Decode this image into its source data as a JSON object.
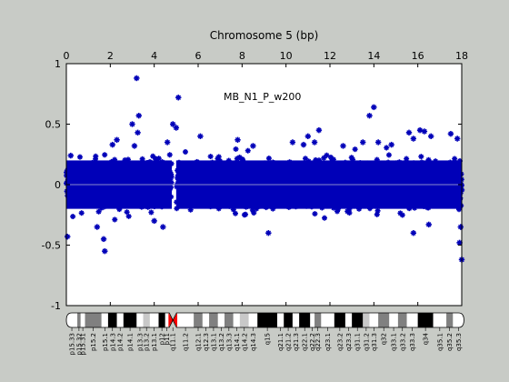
{
  "chart_data": {
    "type": "scatter",
    "title": "Chromosome 5 (bp)",
    "annotation": "MB_N1_P_w200",
    "xlabel": "",
    "ylabel": "",
    "xlim": [
      0,
      18
    ],
    "ylim": [
      -1,
      1
    ],
    "x_ticks": [
      0,
      2,
      4,
      6,
      8,
      10,
      12,
      14,
      16,
      18
    ],
    "x_tick_labels": [
      "0",
      "2",
      "4",
      "6",
      "8",
      "10",
      "12",
      "14",
      "16",
      "18"
    ],
    "y_ticks": [
      -1,
      -0.5,
      0,
      0.5,
      1
    ],
    "y_tick_labels": [
      "-1",
      "-0.5",
      "0",
      "0.5",
      "1"
    ],
    "x_axis_position": "top",
    "reference_line_y": 0,
    "grid": false,
    "colors": {
      "points": "#0000b8",
      "background": "#c8cbc6",
      "plot_area": "#ffffff",
      "centromere": "#ff0000"
    },
    "series": [
      {
        "dense_band": [
          -0.3,
          0.3
        ],
        "gap_x": [
          4.8,
          5.0
        ],
        "outliers": [
          [
            0.05,
            -0.43
          ],
          [
            0.2,
            0.24
          ],
          [
            1.4,
            -0.35
          ],
          [
            1.7,
            -0.45
          ],
          [
            1.75,
            -0.55
          ],
          [
            2.1,
            0.33
          ],
          [
            2.3,
            0.37
          ],
          [
            3.0,
            0.5
          ],
          [
            3.2,
            0.88
          ],
          [
            3.3,
            0.57
          ],
          [
            3.25,
            0.43
          ],
          [
            3.1,
            0.32
          ],
          [
            4.0,
            -0.3
          ],
          [
            4.4,
            -0.35
          ],
          [
            4.6,
            0.35
          ],
          [
            4.85,
            0.5
          ],
          [
            5.0,
            0.47
          ],
          [
            5.1,
            0.72
          ],
          [
            6.1,
            0.4
          ],
          [
            7.8,
            0.37
          ],
          [
            8.5,
            0.32
          ],
          [
            9.2,
            -0.4
          ],
          [
            10.3,
            0.35
          ],
          [
            10.8,
            0.33
          ],
          [
            11.0,
            0.4
          ],
          [
            11.3,
            0.35
          ],
          [
            11.5,
            0.45
          ],
          [
            12.6,
            0.32
          ],
          [
            13.5,
            0.35
          ],
          [
            13.8,
            0.57
          ],
          [
            14.0,
            0.64
          ],
          [
            14.2,
            0.35
          ],
          [
            14.8,
            0.33
          ],
          [
            15.6,
            0.43
          ],
          [
            15.8,
            0.38
          ],
          [
            16.1,
            0.45
          ],
          [
            16.3,
            0.44
          ],
          [
            16.6,
            0.4
          ],
          [
            17.5,
            0.42
          ],
          [
            17.8,
            0.38
          ],
          [
            15.8,
            -0.4
          ],
          [
            16.5,
            -0.33
          ],
          [
            17.9,
            -0.48
          ],
          [
            18.0,
            -0.62
          ],
          [
            17.95,
            -0.35
          ]
        ]
      }
    ],
    "ideogram": {
      "bands": [
        {
          "start": 0.0,
          "end": 0.5,
          "stain": "gneg",
          "label": "p15.33"
        },
        {
          "start": 0.5,
          "end": 0.65,
          "stain": "gpos50",
          "label": "p15.32"
        },
        {
          "start": 0.65,
          "end": 0.85,
          "stain": "gneg",
          "label": "p15.31"
        },
        {
          "start": 0.85,
          "end": 1.6,
          "stain": "gpos50",
          "label": "p15.2"
        },
        {
          "start": 1.6,
          "end": 1.9,
          "stain": "gneg",
          "label": "p15.1"
        },
        {
          "start": 1.9,
          "end": 2.3,
          "stain": "gpos100",
          "label": "p14.3"
        },
        {
          "start": 2.3,
          "end": 2.6,
          "stain": "gneg",
          "label": "p14.2"
        },
        {
          "start": 2.6,
          "end": 3.2,
          "stain": "gpos100",
          "label": "p14.1"
        },
        {
          "start": 3.2,
          "end": 3.5,
          "stain": "gneg",
          "label": "p13.3"
        },
        {
          "start": 3.5,
          "end": 3.8,
          "stain": "gpos25",
          "label": "p13.2"
        },
        {
          "start": 3.8,
          "end": 4.2,
          "stain": "gneg",
          "label": "p13.1"
        },
        {
          "start": 4.2,
          "end": 4.5,
          "stain": "gpos100",
          "label": "p12"
        },
        {
          "start": 4.5,
          "end": 4.65,
          "stain": "gneg",
          "label": "p11"
        },
        {
          "start": 4.65,
          "end": 5.05,
          "stain": "acen",
          "label": "q11.1"
        },
        {
          "start": 5.05,
          "end": 5.8,
          "stain": "gneg",
          "label": "q11.2"
        },
        {
          "start": 5.8,
          "end": 6.2,
          "stain": "gpos50",
          "label": "q12.1"
        },
        {
          "start": 6.2,
          "end": 6.5,
          "stain": "gneg",
          "label": "q12.3"
        },
        {
          "start": 6.5,
          "end": 6.9,
          "stain": "gpos50",
          "label": "q13.1"
        },
        {
          "start": 6.9,
          "end": 7.2,
          "stain": "gneg",
          "label": "q13.2"
        },
        {
          "start": 7.2,
          "end": 7.6,
          "stain": "gpos50",
          "label": "q13.3"
        },
        {
          "start": 7.6,
          "end": 7.9,
          "stain": "gneg",
          "label": "q14.1"
        },
        {
          "start": 7.9,
          "end": 8.3,
          "stain": "gpos25",
          "label": "q14.2"
        },
        {
          "start": 8.3,
          "end": 8.7,
          "stain": "gneg",
          "label": "q14.3"
        },
        {
          "start": 8.7,
          "end": 9.6,
          "stain": "gpos100",
          "label": "q15"
        },
        {
          "start": 9.6,
          "end": 9.9,
          "stain": "gneg",
          "label": "q21.1"
        },
        {
          "start": 9.9,
          "end": 10.3,
          "stain": "gpos100",
          "label": "q21.2"
        },
        {
          "start": 10.3,
          "end": 10.6,
          "stain": "gneg",
          "label": "q21.3"
        },
        {
          "start": 10.6,
          "end": 11.1,
          "stain": "gpos100",
          "label": "q22.1"
        },
        {
          "start": 11.1,
          "end": 11.3,
          "stain": "gneg",
          "label": "q22.2"
        },
        {
          "start": 11.3,
          "end": 11.6,
          "stain": "gpos50",
          "label": "q22.3"
        },
        {
          "start": 11.6,
          "end": 12.2,
          "stain": "gneg",
          "label": "q23.1"
        },
        {
          "start": 12.2,
          "end": 12.7,
          "stain": "gpos100",
          "label": "q23.2"
        },
        {
          "start": 12.7,
          "end": 13.0,
          "stain": "gneg",
          "label": "q23.3"
        },
        {
          "start": 13.0,
          "end": 13.5,
          "stain": "gpos100",
          "label": "q31.1"
        },
        {
          "start": 13.5,
          "end": 13.8,
          "stain": "gpos25",
          "label": "q31.2"
        },
        {
          "start": 13.8,
          "end": 14.2,
          "stain": "gneg",
          "label": "q31.3"
        },
        {
          "start": 14.2,
          "end": 14.7,
          "stain": "gpos50",
          "label": "q32"
        },
        {
          "start": 14.7,
          "end": 15.1,
          "stain": "gneg",
          "label": "q33.1"
        },
        {
          "start": 15.1,
          "end": 15.5,
          "stain": "gpos50",
          "label": "q33.2"
        },
        {
          "start": 15.5,
          "end": 16.0,
          "stain": "gneg",
          "label": "q33.3"
        },
        {
          "start": 16.0,
          "end": 16.7,
          "stain": "gpos100",
          "label": "q34"
        },
        {
          "start": 16.7,
          "end": 17.3,
          "stain": "gneg",
          "label": "q35.1"
        },
        {
          "start": 17.3,
          "end": 17.6,
          "stain": "gpos50",
          "label": "q35.2"
        },
        {
          "start": 17.6,
          "end": 18.1,
          "stain": "gneg",
          "label": "q35.3"
        }
      ]
    }
  }
}
